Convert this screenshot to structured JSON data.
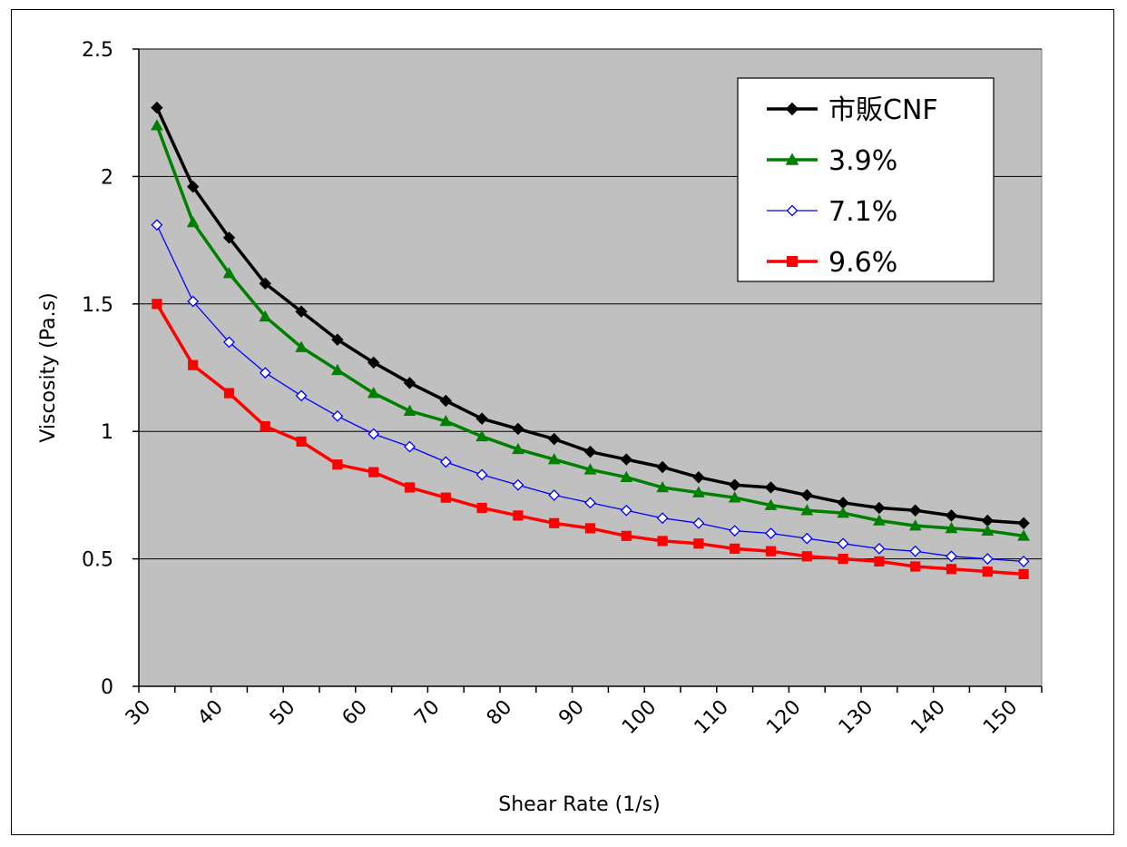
{
  "chart_data": {
    "type": "line",
    "xlabel": "Shear Rate (1/s)",
    "ylabel": "Viscosity (Pa.s)",
    "ylim": [
      0,
      2.5
    ],
    "yticks": [
      "0",
      "0.5",
      "1",
      "1.5",
      "2",
      "2.5"
    ],
    "xlim": [
      30,
      155
    ],
    "xticks": [
      "30",
      "40",
      "50",
      "60",
      "70",
      "80",
      "90",
      "100",
      "110",
      "120",
      "130",
      "140",
      "150"
    ],
    "grid": "horizontal",
    "legend_position": "top-right",
    "plot_background": "#c0c0c0",
    "x": [
      32.5,
      37.5,
      42.5,
      47.5,
      52.5,
      57.5,
      62.5,
      67.5,
      72.5,
      77.5,
      82.5,
      87.5,
      92.5,
      97.5,
      102.5,
      107.5,
      112.5,
      117.5,
      122.5,
      127.5,
      132.5,
      137.5,
      142.5,
      147.5,
      152.5
    ],
    "series": [
      {
        "name": "市販CNF",
        "color": "#000000",
        "marker": "diamond-filled",
        "values": [
          2.27,
          1.96,
          1.76,
          1.58,
          1.47,
          1.36,
          1.27,
          1.19,
          1.12,
          1.05,
          1.01,
          0.97,
          0.92,
          0.89,
          0.86,
          0.82,
          0.79,
          0.78,
          0.75,
          0.72,
          0.7,
          0.69,
          0.67,
          0.65,
          0.64
        ]
      },
      {
        "name": "3.9%",
        "color": "#008000",
        "marker": "triangle-filled",
        "values": [
          2.2,
          1.82,
          1.62,
          1.45,
          1.33,
          1.24,
          1.15,
          1.08,
          1.04,
          0.98,
          0.93,
          0.89,
          0.85,
          0.82,
          0.78,
          0.76,
          0.74,
          0.71,
          0.69,
          0.68,
          0.65,
          0.63,
          0.62,
          0.61,
          0.59
        ]
      },
      {
        "name": "7.1%",
        "color": "#0000ff",
        "marker": "diamond-open",
        "values": [
          1.81,
          1.51,
          1.35,
          1.23,
          1.14,
          1.06,
          0.99,
          0.94,
          0.88,
          0.83,
          0.79,
          0.75,
          0.72,
          0.69,
          0.66,
          0.64,
          0.61,
          0.6,
          0.58,
          0.56,
          0.54,
          0.53,
          0.51,
          0.5,
          0.49
        ]
      },
      {
        "name": "9.6%",
        "color": "#ff0000",
        "marker": "square-filled",
        "values": [
          1.5,
          1.26,
          1.15,
          1.02,
          0.96,
          0.87,
          0.84,
          0.78,
          0.74,
          0.7,
          0.67,
          0.64,
          0.62,
          0.59,
          0.57,
          0.56,
          0.54,
          0.53,
          0.51,
          0.5,
          0.49,
          0.47,
          0.46,
          0.45,
          0.44
        ]
      }
    ]
  }
}
